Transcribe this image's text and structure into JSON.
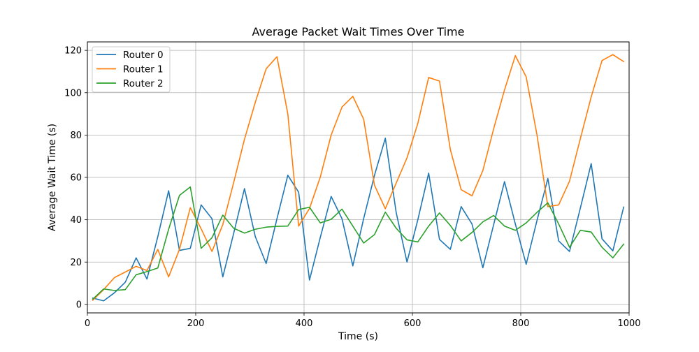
{
  "chart_data": {
    "type": "line",
    "title": "Average Packet Wait Times Over Time",
    "xlabel": "Time (s)",
    "ylabel": "Average Wait Time (s)",
    "xlim": [
      0,
      1000
    ],
    "ylim": [
      -4,
      124
    ],
    "xticks": [
      0,
      200,
      400,
      600,
      800,
      1000
    ],
    "yticks": [
      0,
      20,
      40,
      60,
      80,
      100,
      120
    ],
    "grid": true,
    "legend_position": "top-left",
    "x": [
      10,
      30,
      50,
      70,
      90,
      110,
      130,
      150,
      170,
      190,
      210,
      230,
      250,
      270,
      290,
      310,
      330,
      350,
      370,
      390,
      410,
      430,
      450,
      470,
      490,
      510,
      530,
      550,
      570,
      590,
      610,
      630,
      650,
      670,
      690,
      710,
      730,
      750,
      770,
      790,
      810,
      830,
      850,
      870,
      890,
      910,
      930,
      950,
      970,
      990
    ],
    "series": [
      {
        "name": "Router 0",
        "color": "#1f77b4",
        "values": [
          3,
          1.7,
          5.5,
          10.5,
          22,
          12,
          32,
          53.7,
          25.5,
          26.5,
          47,
          40.5,
          13,
          33.5,
          54.7,
          32,
          19.3,
          40.5,
          61,
          53,
          11.5,
          31.7,
          51,
          40.5,
          18.2,
          40.5,
          61,
          78.5,
          43.5,
          20,
          40,
          62,
          30.7,
          26,
          46.2,
          38,
          17.3,
          37.7,
          58,
          38,
          19,
          39.7,
          59.5,
          30,
          25,
          45.5,
          66.5,
          31,
          25.3,
          46
        ]
      },
      {
        "name": "Router 1",
        "color": "#ff7f0e",
        "values": [
          2,
          7,
          12.7,
          15.3,
          18,
          16,
          26,
          13,
          26,
          45.7,
          35.7,
          25,
          37.7,
          57.5,
          78,
          95.5,
          111.3,
          117,
          90,
          37,
          45.3,
          60.2,
          80,
          93.2,
          98.3,
          87.5,
          56.3,
          45.2,
          57.3,
          69.2,
          85.5,
          107.2,
          105.5,
          73.2,
          54.2,
          51.3,
          63.2,
          83,
          101.3,
          117.5,
          107.5,
          80,
          46.2,
          47,
          58.2,
          78.3,
          98,
          115.2,
          118,
          114.7
        ]
      },
      {
        "name": "Router 2",
        "color": "#2ca02c",
        "values": [
          2.5,
          7.3,
          6.6,
          7,
          14,
          15.5,
          17.2,
          35.5,
          51.5,
          55.5,
          26.5,
          31.5,
          42.2,
          36,
          33.7,
          35.5,
          36.5,
          36.9,
          37,
          44.8,
          45.9,
          38.5,
          40.2,
          45,
          37,
          29,
          33,
          43.6,
          36,
          30.5,
          29.5,
          37,
          43.2,
          37.3,
          30,
          34,
          39,
          42,
          37,
          35,
          38.5,
          43.5,
          48,
          38,
          27,
          35,
          34.2,
          27,
          22,
          28.5
        ]
      }
    ]
  }
}
